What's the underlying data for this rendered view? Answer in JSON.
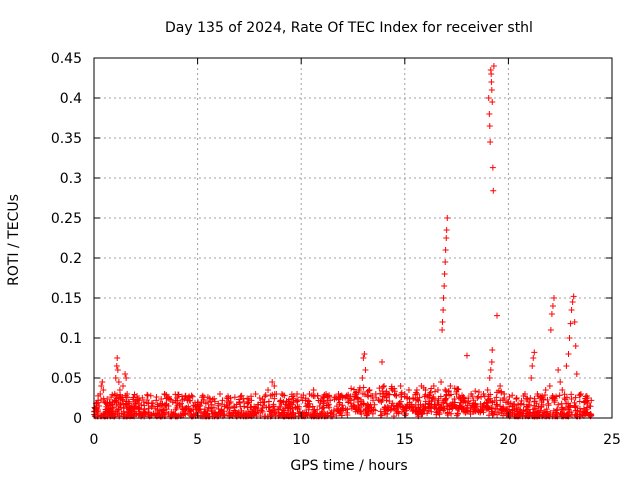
{
  "chart_data": {
    "type": "scatter",
    "title": "Day 135 of 2024, Rate Of TEC Index for receiver sthl",
    "xlabel": "GPS time / hours",
    "ylabel": "ROTI / TECUs",
    "xlim": [
      0,
      25
    ],
    "ylim": [
      0,
      0.45
    ],
    "grid": true,
    "marker": "+",
    "series_color": "#ff0000",
    "x_ticks": [
      0,
      5,
      10,
      15,
      20,
      25
    ],
    "x_tick_labels": [
      "0",
      "5",
      "10",
      "15",
      "20",
      "25"
    ],
    "y_ticks": [
      0,
      0.05,
      0.1,
      0.15,
      0.2,
      0.25,
      0.3,
      0.35,
      0.4,
      0.45
    ],
    "y_tick_labels": [
      "0",
      "0.05",
      "0.1",
      "0.15",
      "0.2",
      "0.25",
      "0.3",
      "0.35",
      "0.4",
      "0.45"
    ],
    "series": [
      {
        "name": "ROTI",
        "points": [
          [
            0.05,
            0.012
          ],
          [
            0.1,
            0.018
          ],
          [
            0.15,
            0.008
          ],
          [
            0.2,
            0.022
          ],
          [
            0.25,
            0.015
          ],
          [
            0.3,
            0.03
          ],
          [
            0.35,
            0.04
          ],
          [
            0.4,
            0.045
          ],
          [
            0.45,
            0.035
          ],
          [
            0.5,
            0.02
          ],
          [
            0.6,
            0.014
          ],
          [
            0.7,
            0.01
          ],
          [
            0.8,
            0.016
          ],
          [
            0.9,
            0.02
          ],
          [
            1.0,
            0.03
          ],
          [
            1.05,
            0.05
          ],
          [
            1.1,
            0.065
          ],
          [
            1.12,
            0.075
          ],
          [
            1.15,
            0.06
          ],
          [
            1.2,
            0.045
          ],
          [
            1.25,
            0.035
          ],
          [
            1.3,
            0.025
          ],
          [
            1.4,
            0.04
          ],
          [
            1.5,
            0.055
          ],
          [
            1.55,
            0.05
          ],
          [
            1.6,
            0.03
          ],
          [
            1.7,
            0.02
          ],
          [
            1.8,
            0.015
          ],
          [
            1.9,
            0.012
          ],
          [
            2.0,
            0.018
          ],
          [
            2.2,
            0.012
          ],
          [
            2.4,
            0.02
          ],
          [
            2.6,
            0.028
          ],
          [
            2.8,
            0.015
          ],
          [
            3.0,
            0.022
          ],
          [
            3.2,
            0.018
          ],
          [
            3.4,
            0.03
          ],
          [
            3.6,
            0.015
          ],
          [
            3.8,
            0.02
          ],
          [
            4.0,
            0.025
          ],
          [
            4.2,
            0.018
          ],
          [
            4.4,
            0.012
          ],
          [
            4.6,
            0.022
          ],
          [
            4.8,
            0.016
          ],
          [
            5.0,
            0.014
          ],
          [
            5.2,
            0.02
          ],
          [
            5.4,
            0.018
          ],
          [
            5.6,
            0.012
          ],
          [
            5.8,
            0.024
          ],
          [
            6.0,
            0.018
          ],
          [
            6.2,
            0.022
          ],
          [
            6.4,
            0.016
          ],
          [
            6.6,
            0.02
          ],
          [
            6.8,
            0.026
          ],
          [
            7.0,
            0.02
          ],
          [
            7.2,
            0.024
          ],
          [
            7.4,
            0.018
          ],
          [
            7.6,
            0.022
          ],
          [
            7.8,
            0.03
          ],
          [
            8.0,
            0.025
          ],
          [
            8.2,
            0.02
          ],
          [
            8.4,
            0.035
          ],
          [
            8.6,
            0.045
          ],
          [
            8.7,
            0.04
          ],
          [
            8.8,
            0.03
          ],
          [
            9.0,
            0.022
          ],
          [
            9.2,
            0.028
          ],
          [
            9.4,
            0.02
          ],
          [
            9.6,
            0.024
          ],
          [
            9.8,
            0.03
          ],
          [
            10.0,
            0.026
          ],
          [
            10.2,
            0.022
          ],
          [
            10.4,
            0.03
          ],
          [
            10.6,
            0.035
          ],
          [
            10.8,
            0.028
          ],
          [
            11.0,
            0.024
          ],
          [
            11.2,
            0.03
          ],
          [
            11.4,
            0.022
          ],
          [
            11.6,
            0.026
          ],
          [
            11.8,
            0.03
          ],
          [
            12.0,
            0.025
          ],
          [
            12.2,
            0.028
          ],
          [
            12.4,
            0.022
          ],
          [
            12.6,
            0.03
          ],
          [
            12.8,
            0.035
          ],
          [
            12.95,
            0.05
          ],
          [
            13.0,
            0.075
          ],
          [
            13.05,
            0.08
          ],
          [
            13.1,
            0.06
          ],
          [
            13.3,
            0.035
          ],
          [
            13.6,
            0.03
          ],
          [
            13.9,
            0.07
          ],
          [
            14.0,
            0.04
          ],
          [
            14.2,
            0.03
          ],
          [
            14.4,
            0.035
          ],
          [
            14.6,
            0.028
          ],
          [
            14.8,
            0.04
          ],
          [
            15.0,
            0.03
          ],
          [
            15.2,
            0.035
          ],
          [
            15.4,
            0.025
          ],
          [
            15.6,
            0.03
          ],
          [
            15.8,
            0.04
          ],
          [
            16.0,
            0.035
          ],
          [
            16.2,
            0.03
          ],
          [
            16.4,
            0.04
          ],
          [
            16.6,
            0.035
          ],
          [
            16.75,
            0.045
          ],
          [
            16.8,
            0.11
          ],
          [
            16.82,
            0.12
          ],
          [
            16.85,
            0.135
          ],
          [
            16.87,
            0.15
          ],
          [
            16.9,
            0.165
          ],
          [
            16.92,
            0.18
          ],
          [
            16.95,
            0.195
          ],
          [
            16.97,
            0.21
          ],
          [
            17.0,
            0.225
          ],
          [
            17.02,
            0.235
          ],
          [
            17.05,
            0.25
          ],
          [
            17.2,
            0.04
          ],
          [
            17.5,
            0.03
          ],
          [
            17.8,
            0.025
          ],
          [
            18.0,
            0.078
          ],
          [
            18.2,
            0.03
          ],
          [
            18.5,
            0.025
          ],
          [
            18.8,
            0.03
          ],
          [
            19.0,
            0.035
          ],
          [
            19.1,
            0.05
          ],
          [
            19.15,
            0.06
          ],
          [
            19.2,
            0.07
          ],
          [
            19.22,
            0.085
          ],
          [
            19.05,
            0.4
          ],
          [
            19.08,
            0.38
          ],
          [
            19.1,
            0.365
          ],
          [
            19.12,
            0.345
          ],
          [
            19.15,
            0.435
          ],
          [
            19.17,
            0.43
          ],
          [
            19.18,
            0.42
          ],
          [
            19.2,
            0.41
          ],
          [
            19.22,
            0.395
          ],
          [
            19.25,
            0.313
          ],
          [
            19.27,
            0.284
          ],
          [
            19.3,
            0.44
          ],
          [
            19.45,
            0.128
          ],
          [
            19.6,
            0.04
          ],
          [
            19.8,
            0.03
          ],
          [
            20.0,
            0.02
          ],
          [
            20.2,
            0.015
          ],
          [
            20.4,
            0.025
          ],
          [
            20.6,
            0.018
          ],
          [
            20.8,
            0.03
          ],
          [
            21.0,
            0.02
          ],
          [
            21.1,
            0.05
          ],
          [
            21.15,
            0.065
          ],
          [
            21.2,
            0.075
          ],
          [
            21.25,
            0.082
          ],
          [
            21.4,
            0.03
          ],
          [
            21.6,
            0.02
          ],
          [
            21.8,
            0.035
          ],
          [
            22.0,
            0.04
          ],
          [
            22.05,
            0.11
          ],
          [
            22.1,
            0.13
          ],
          [
            22.15,
            0.14
          ],
          [
            22.2,
            0.15
          ],
          [
            22.4,
            0.06
          ],
          [
            22.5,
            0.045
          ],
          [
            22.6,
            0.035
          ],
          [
            22.8,
            0.065
          ],
          [
            22.9,
            0.08
          ],
          [
            22.95,
            0.1
          ],
          [
            23.0,
            0.118
          ],
          [
            23.05,
            0.135
          ],
          [
            23.1,
            0.145
          ],
          [
            23.15,
            0.152
          ],
          [
            23.2,
            0.12
          ],
          [
            23.25,
            0.09
          ],
          [
            23.3,
            0.055
          ],
          [
            23.5,
            0.03
          ],
          [
            23.7,
            0.02
          ],
          [
            23.9,
            0.015
          ],
          [
            24.0,
            0.022
          ]
        ]
      }
    ]
  }
}
